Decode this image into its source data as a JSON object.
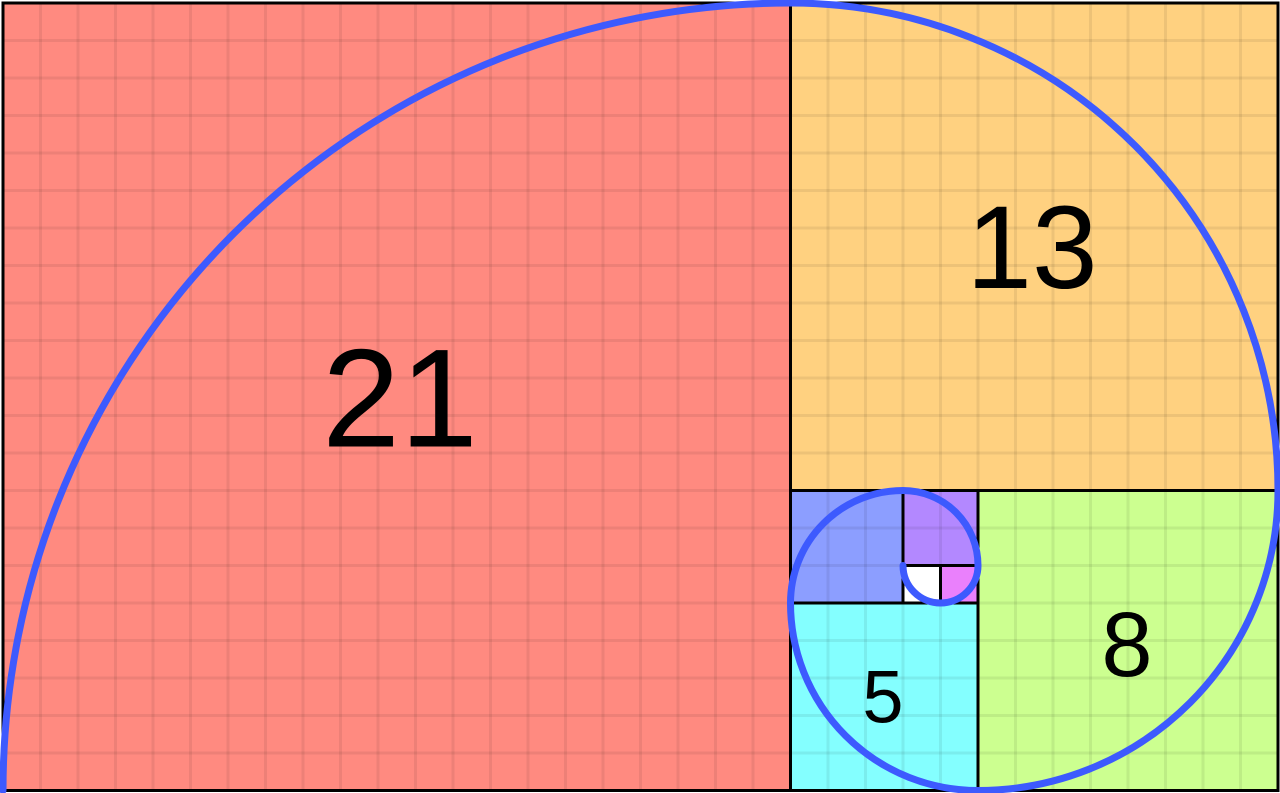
{
  "squares": [
    {
      "size": 21,
      "label": "21",
      "color": "#ff8a80"
    },
    {
      "size": 13,
      "label": "13",
      "color": "#ffd180"
    },
    {
      "size": 8,
      "label": "8",
      "color": "#ccff90"
    },
    {
      "size": 5,
      "label": "5",
      "color": "#84ffff"
    },
    {
      "size": 3,
      "label": "",
      "color": "#8c9eff"
    },
    {
      "size": 2,
      "label": "",
      "color": "#b388ff"
    },
    {
      "size": 1,
      "label": "",
      "color": "#ea80fc"
    },
    {
      "size": 1,
      "label": "",
      "color": "#ffffff"
    }
  ],
  "spiral_color": "#3d5afe",
  "border_color": "#000000"
}
